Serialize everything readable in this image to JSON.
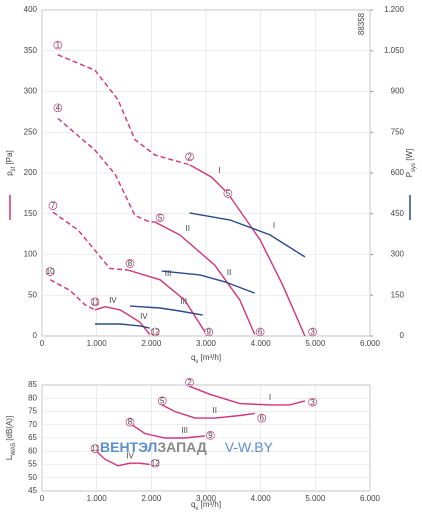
{
  "chart_data": [
    {
      "type": "line",
      "code": "88358",
      "x_label": {
        "symbol": "q",
        "sub": "v",
        "unit": " [m³/h]"
      },
      "y_label": {
        "symbol": "p",
        "sub": "sf",
        "unit": " [Pa]"
      },
      "y2_label": {
        "symbol": "P",
        "sub": "sys",
        "unit": " [W]"
      },
      "xlim": [
        0,
        6000
      ],
      "xticks": [
        0,
        {
          "value": 1000,
          "label": "1.000"
        },
        {
          "value": 2000,
          "label": "2.000"
        },
        {
          "value": 3000,
          "label": "3.000"
        },
        {
          "value": 4000,
          "label": "4.000"
        },
        {
          "value": 5000,
          "label": "5.000"
        },
        {
          "value": 6000,
          "label": "6.000"
        }
      ],
      "ylim": [
        0,
        400
      ],
      "yticks": [
        0,
        50,
        100,
        150,
        200,
        250,
        300,
        350,
        400
      ],
      "y2lim": [
        0,
        1200
      ],
      "y2ticks": [
        0,
        150,
        300,
        450,
        600,
        750,
        900,
        {
          "value": 1050,
          "label": "1.050"
        },
        {
          "value": 1200,
          "label": "1.200"
        }
      ],
      "grid": true,
      "series": [
        {
          "name": "I",
          "color": "#d4327a",
          "x": [
            2700,
            3100,
            3400,
            3990,
            4400,
            4810
          ],
          "values": [
            210,
            195,
            175,
            118,
            63,
            0
          ],
          "stall_x": [
            290,
            970,
            1390,
            1700,
            2070,
            2700
          ],
          "stall_values": [
            345,
            326,
            290,
            241,
            222,
            210
          ]
        },
        {
          "name": "II",
          "color": "#d4327a",
          "x": [
            2060,
            2520,
            3160,
            3620,
            3890
          ],
          "values": [
            140,
            124,
            87,
            44,
            2
          ],
          "stall_x": [
            290,
            970,
            1340,
            1700,
            1970,
            2060
          ],
          "stall_values": [
            267,
            228,
            198,
            148,
            140,
            140
          ]
        },
        {
          "name": "III",
          "color": "#d4327a",
          "x": [
            1570,
            2160,
            2610,
            2980
          ],
          "values": [
            81,
            69,
            44,
            5
          ],
          "stall_x": [
            200,
            660,
            970,
            1240,
            1570
          ],
          "stall_values": [
            152,
            130,
            105,
            83,
            81
          ]
        },
        {
          "name": "IV",
          "color": "#d4327a",
          "x": [
            970,
            1150,
            1430,
            1790,
            1970
          ],
          "values": [
            32,
            36,
            32,
            17,
            2
          ],
          "stall_x": [
            150,
            510,
            790,
            970
          ],
          "stall_values": [
            69,
            56,
            38,
            32
          ]
        },
        {
          "name": "I",
          "color": "#2b4a8a",
          "axis": "y2",
          "x": [
            2700,
            3440,
            4170,
            4810
          ],
          "values": [
            453,
            427,
            372,
            291
          ]
        },
        {
          "name": "II",
          "color": "#2b4a8a",
          "axis": "y2",
          "x": [
            2190,
            2890,
            3350,
            3890
          ],
          "values": [
            239,
            225,
            199,
            158
          ]
        },
        {
          "name": "III",
          "color": "#2b4a8a",
          "axis": "y2",
          "x": [
            1610,
            2160,
            2520,
            2940
          ],
          "values": [
            110,
            103,
            92,
            77
          ]
        },
        {
          "name": "IV",
          "color": "#2b4a8a",
          "axis": "y2",
          "x": [
            970,
            1430,
            1790,
            1970
          ],
          "values": [
            44,
            44,
            37,
            29
          ]
        }
      ],
      "markers": [
        {
          "text": "1",
          "x": 290,
          "y": 357
        },
        {
          "text": "2",
          "x": 2700,
          "y": 220
        },
        {
          "text": "5",
          "x": 3400,
          "y": 175
        },
        {
          "text": "3",
          "x": 4950,
          "y": 5
        },
        {
          "text": "4",
          "x": 290,
          "y": 280
        },
        {
          "text": "5",
          "x": 2160,
          "y": 145
        },
        {
          "text": "6",
          "x": 3990,
          "y": 5
        },
        {
          "text": "7",
          "x": 200,
          "y": 160
        },
        {
          "text": "8",
          "x": 1610,
          "y": 89
        },
        {
          "text": "9",
          "x": 3050,
          "y": 5
        },
        {
          "text": "10",
          "x": 150,
          "y": 79
        },
        {
          "text": "11",
          "x": 970,
          "y": 42
        },
        {
          "text": "12",
          "x": 2070,
          "y": 5
        }
      ]
    },
    {
      "type": "line",
      "x_label": {
        "symbol": "q",
        "sub": "v",
        "unit": " [m³/h]"
      },
      "y_label": {
        "symbol": "L",
        "sub": "WA5",
        "unit": " [dB(A)]"
      },
      "xlim": [
        0,
        6000
      ],
      "xticks": [
        0,
        {
          "value": 1000,
          "label": "1.000"
        },
        {
          "value": 2000,
          "label": "2.000"
        },
        {
          "value": 3000,
          "label": "3.000"
        },
        {
          "value": 4000,
          "label": "4.000"
        },
        {
          "value": 5000,
          "label": "5.000"
        },
        {
          "value": 6000,
          "label": "6.000"
        }
      ],
      "ylim": [
        45,
        85
      ],
      "yticks": [
        45,
        50,
        55,
        60,
        65,
        70,
        75,
        80,
        85
      ],
      "grid": true,
      "watermark": [
        "ВЕНТЭЛ",
        "ЗАПАД",
        "V-W.BY"
      ],
      "series": [
        {
          "name": "I",
          "color": "#d4327a",
          "x": [
            2700,
            3070,
            3620,
            4170,
            4530,
            4810
          ],
          "values": [
            84.5,
            81.5,
            78,
            77.5,
            77.5,
            79
          ]
        },
        {
          "name": "II",
          "color": "#d4327a",
          "x": [
            2150,
            2430,
            2800,
            3160,
            3620,
            3890
          ],
          "values": [
            78,
            75,
            72.5,
            72.5,
            73.5,
            74.3
          ]
        },
        {
          "name": "III",
          "color": "#d4327a",
          "x": [
            1610,
            1880,
            2250,
            2610,
            2980
          ],
          "values": [
            70.5,
            66.7,
            65,
            65,
            65.8
          ]
        },
        {
          "name": "IV",
          "color": "#d4327a",
          "x": [
            970,
            1150,
            1390,
            1610,
            1790,
            1970
          ],
          "values": [
            60.5,
            57,
            54.5,
            55.5,
            55.5,
            55
          ]
        }
      ],
      "markers": [
        {
          "text": "2",
          "x": 2700,
          "y": 86
        },
        {
          "text": "3",
          "x": 4950,
          "y": 78.5
        },
        {
          "text": "5",
          "x": 2200,
          "y": 79
        },
        {
          "text": "6",
          "x": 4020,
          "y": 72.5
        },
        {
          "text": "8",
          "x": 1610,
          "y": 71
        },
        {
          "text": "9",
          "x": 3080,
          "y": 66
        },
        {
          "text": "11",
          "x": 970,
          "y": 61
        },
        {
          "text": "12",
          "x": 2070,
          "y": 55.5
        }
      ]
    }
  ]
}
